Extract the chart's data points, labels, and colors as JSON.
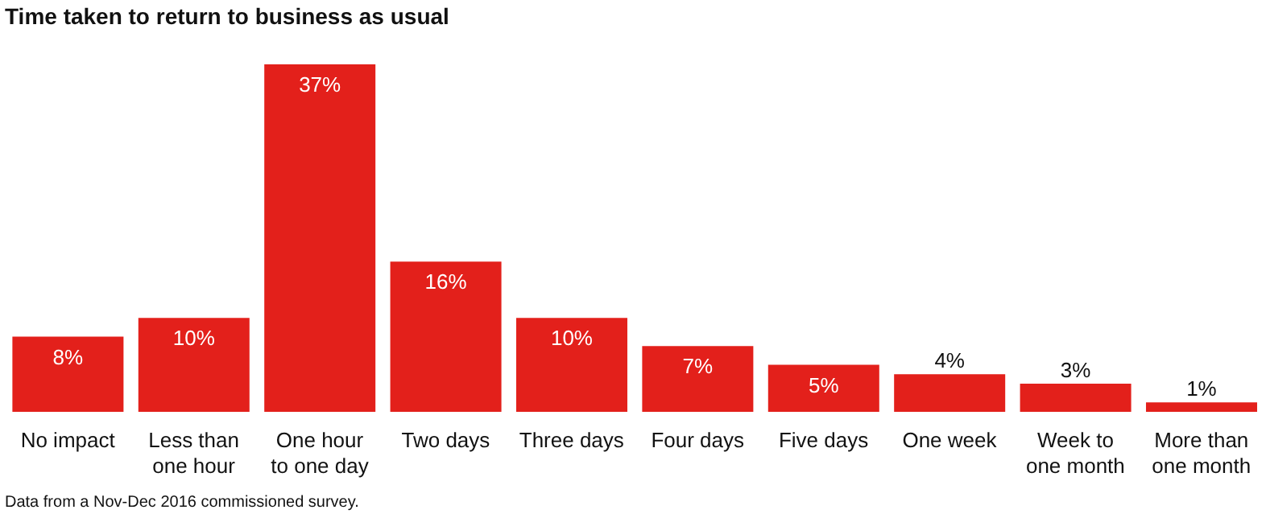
{
  "chart_data": {
    "type": "bar",
    "title": "Time taken to return to business as usual",
    "categories": [
      "No impact",
      "Less than one hour",
      "One hour to one day",
      "Two days",
      "Three days",
      "Four days",
      "Five days",
      "One week",
      "Week to one month",
      "More than one month"
    ],
    "values": [
      8,
      10,
      37,
      16,
      10,
      7,
      5,
      4,
      3,
      1
    ],
    "value_labels": [
      "8%",
      "10%",
      "37%",
      "16%",
      "10%",
      "7%",
      "5%",
      "4%",
      "3%",
      "1%"
    ],
    "color": "#e3201b",
    "annotations": [
      "Data from a Nov-Dec 2016 commissioned survey."
    ]
  }
}
